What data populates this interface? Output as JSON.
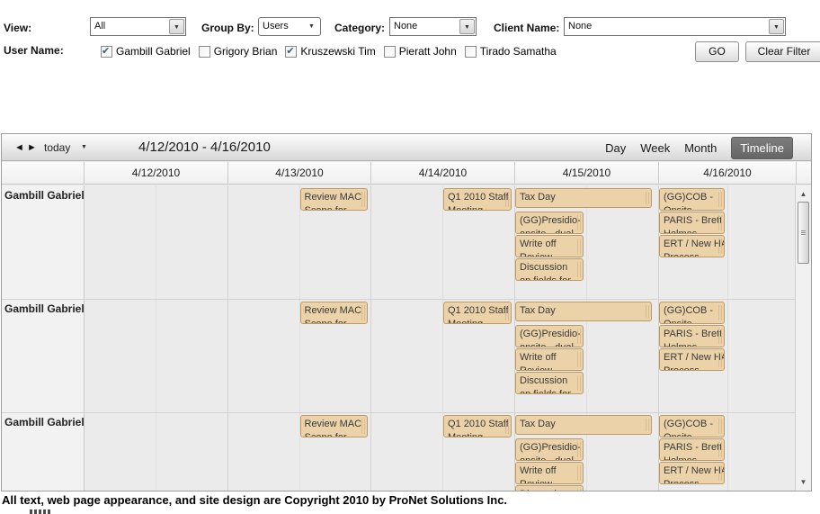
{
  "filters": {
    "view_label": "View:",
    "view_value": "All",
    "group_by_label": "Group By:",
    "group_by_value": "Users",
    "category_label": "Category:",
    "category_value": "None",
    "client_label": "Client Name:",
    "client_value": "None",
    "user_name_label": "User Name:",
    "users": [
      {
        "name": "Gambill Gabriel",
        "checked": true
      },
      {
        "name": "Grigory Brian",
        "checked": false
      },
      {
        "name": "Kruszewski Tim",
        "checked": true
      },
      {
        "name": "Pieratt John",
        "checked": false
      },
      {
        "name": "Tirado Samatha",
        "checked": false
      }
    ],
    "go_label": "GO",
    "clear_label": "Clear Filter"
  },
  "toolbar": {
    "today_label": "today",
    "title": "4/12/2010 - 4/16/2010",
    "views": [
      "Day",
      "Week",
      "Month",
      "Timeline"
    ],
    "active_view": "Timeline"
  },
  "calendar": {
    "columns": [
      "4/12/2010",
      "4/13/2010",
      "4/14/2010",
      "4/15/2010",
      "4/16/2010"
    ],
    "rows": [
      {
        "label": "Gambill Gabriel"
      },
      {
        "label": "Gambill Gabriel"
      },
      {
        "label": "Gambill Gabriel"
      }
    ],
    "row_events": [
      {
        "line1": "Review MAC",
        "line2": "Scope for",
        "day": 1,
        "half": 1,
        "span": "half",
        "stack": 0
      },
      {
        "line1": "Q1 2010 Staff",
        "line2": "Meeting",
        "day": 2,
        "half": 1,
        "span": "half",
        "stack": 0
      },
      {
        "line1": "Tax Day",
        "line2": "",
        "day": 3,
        "half": 0,
        "span": "full",
        "stack": 0
      },
      {
        "line1": "(GG)Presidio-",
        "line2": "onsite - dual",
        "day": 3,
        "half": 0,
        "span": "half",
        "stack": 1
      },
      {
        "line1": "Write off",
        "line2": "Review",
        "day": 3,
        "half": 0,
        "span": "half",
        "stack": 2
      },
      {
        "line1": "Discussion",
        "line2": "on fields for",
        "day": 3,
        "half": 0,
        "span": "half",
        "stack": 3
      },
      {
        "line1": "(GG)COB -",
        "line2": "Onsite",
        "day": 4,
        "half": 0,
        "span": "half",
        "stack": 0
      },
      {
        "line1": "PARIS - Brett",
        "line2": "Holmes",
        "day": 4,
        "half": 0,
        "span": "half",
        "stack": 1
      },
      {
        "line1": "ERT / New HA",
        "line2": "Process",
        "day": 4,
        "half": 0,
        "span": "half",
        "stack": 2
      }
    ]
  },
  "icons": {
    "dropdown_arrow": "▼",
    "prev_arrow": "◄",
    "next_arrow": "►",
    "scroll_up": "▲",
    "scroll_down": "▼",
    "checkmark": "✔"
  },
  "colors": {
    "event_bg": "#ecd2a8",
    "event_border": "#bf9a66",
    "active_view_bg": "#6e6e6e",
    "grid_bg": "#ebebeb",
    "toolbar_top": "#fdfdfd",
    "toolbar_bottom": "#d8d8d8"
  },
  "footer": {
    "copyright": "All text, web page appearance, and site design are Copyright 2010 by ProNet Solutions Inc."
  }
}
